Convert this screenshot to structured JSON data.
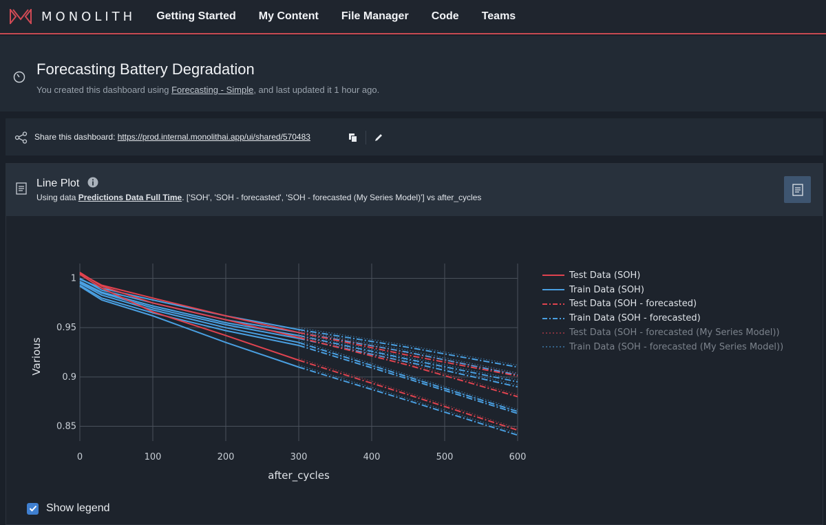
{
  "app": {
    "logo_text": "MONOLITH"
  },
  "nav": {
    "items": [
      "Getting Started",
      "My Content",
      "File Manager",
      "Code",
      "Teams"
    ]
  },
  "header": {
    "title": "Forecasting Battery Degradation",
    "subtitle_pre": "You created this dashboard using ",
    "subtitle_link": "Forecasting - Simple",
    "subtitle_post": ", and last updated it 1 hour ago."
  },
  "share": {
    "label": "Share this dashboard: ",
    "url": "https://prod.internal.monolithai.app/ui/shared/570483"
  },
  "panel": {
    "title": "Line Plot",
    "sub_pre": "Using data ",
    "dataset": "Predictions Data Full Time",
    "sub_post": ". ['SOH', 'SOH - forecasted', 'SOH - forecasted (My Series Model)'] vs after_cycles"
  },
  "show_legend": {
    "label": "Show legend",
    "checked": true
  },
  "colors": {
    "red": "#e0434f",
    "blue": "#4aa0e2",
    "accent": "#c94a52"
  },
  "chart_data": {
    "type": "line",
    "xlabel": "after_cycles",
    "ylabel": "Various",
    "xlim": [
      0,
      600
    ],
    "ylim": [
      0.835,
      1.015
    ],
    "xticks": [
      0,
      100,
      200,
      300,
      400,
      500,
      600
    ],
    "yticks": [
      0.85,
      0.9,
      0.95,
      1
    ],
    "ytick_labels": [
      "0.85",
      "0.9",
      "0.95",
      "1"
    ],
    "grid": true,
    "legend_position": "right",
    "legend": [
      {
        "label": "Test Data (SOH)",
        "color": "#e0434f",
        "dash": "solid",
        "faded": false
      },
      {
        "label": "Train Data (SOH)",
        "color": "#4aa0e2",
        "dash": "solid",
        "faded": false
      },
      {
        "label": "Test Data (SOH - forecasted)",
        "color": "#e0434f",
        "dash": "dashdot",
        "faded": false
      },
      {
        "label": "Train Data (SOH - forecasted)",
        "color": "#4aa0e2",
        "dash": "dashdot",
        "faded": false
      },
      {
        "label": "Test Data (SOH - forecasted (My Series Model))",
        "color": "#e0434f",
        "dash": "dot",
        "faded": true
      },
      {
        "label": "Train Data (SOH - forecasted (My Series Model))",
        "color": "#4aa0e2",
        "dash": "dot",
        "faded": true
      }
    ],
    "series": [
      {
        "kind": "Test",
        "hist_x": [
          0,
          30,
          100,
          200,
          300
        ],
        "hist_y": [
          1.005,
          0.993,
          0.98,
          0.962,
          0.945
        ],
        "fc_x": [
          300,
          450,
          600
        ],
        "fc_y": [
          0.945,
          0.922,
          0.901
        ]
      },
      {
        "kind": "Test",
        "hist_x": [
          0,
          30,
          100,
          200,
          300
        ],
        "hist_y": [
          1.006,
          0.992,
          0.975,
          0.958,
          0.94
        ],
        "fc_x": [
          300,
          450,
          600
        ],
        "fc_y": [
          0.94,
          0.912,
          0.88
        ]
      },
      {
        "kind": "Test",
        "hist_x": [
          0,
          30,
          100,
          200,
          300
        ],
        "hist_y": [
          1.004,
          0.99,
          0.966,
          0.942,
          0.917
        ],
        "fc_x": [
          300,
          450,
          600
        ],
        "fc_y": [
          0.917,
          0.882,
          0.846
        ]
      },
      {
        "kind": "Train",
        "hist_x": [
          0,
          30,
          100,
          200,
          300
        ],
        "hist_y": [
          0.999,
          0.99,
          0.978,
          0.962,
          0.948
        ],
        "fc_x": [
          300,
          450,
          600
        ],
        "fc_y": [
          0.948,
          0.93,
          0.91
        ]
      },
      {
        "kind": "Train",
        "hist_x": [
          0,
          30,
          100,
          200,
          300
        ],
        "hist_y": [
          1.0,
          0.988,
          0.975,
          0.958,
          0.945
        ],
        "fc_x": [
          300,
          450,
          600
        ],
        "fc_y": [
          0.945,
          0.925,
          0.902
        ]
      },
      {
        "kind": "Train",
        "hist_x": [
          0,
          30,
          100,
          200,
          300
        ],
        "hist_y": [
          0.997,
          0.986,
          0.972,
          0.955,
          0.942
        ],
        "fc_x": [
          300,
          450,
          600
        ],
        "fc_y": [
          0.942,
          0.918,
          0.895
        ]
      },
      {
        "kind": "Train",
        "hist_x": [
          0,
          30,
          100,
          200,
          300
        ],
        "hist_y": [
          0.996,
          0.985,
          0.97,
          0.953,
          0.939
        ],
        "fc_x": [
          300,
          450,
          600
        ],
        "fc_y": [
          0.939,
          0.915,
          0.89
        ]
      },
      {
        "kind": "Train",
        "hist_x": [
          0,
          30,
          100,
          200,
          300
        ],
        "hist_y": [
          0.995,
          0.983,
          0.968,
          0.95,
          0.935
        ],
        "fc_x": [
          300,
          450,
          600
        ],
        "fc_y": [
          0.935,
          0.9,
          0.865
        ]
      },
      {
        "kind": "Train",
        "hist_x": [
          0,
          30,
          100,
          200,
          300
        ],
        "hist_y": [
          0.993,
          0.98,
          0.965,
          0.947,
          0.932
        ],
        "fc_x": [
          300,
          450,
          600
        ],
        "fc_y": [
          0.932,
          0.898,
          0.863
        ]
      },
      {
        "kind": "Train",
        "hist_x": [
          0,
          30,
          100,
          200,
          300
        ],
        "hist_y": [
          0.992,
          0.978,
          0.962,
          0.935,
          0.91
        ],
        "fc_x": [
          300,
          450,
          600
        ],
        "fc_y": [
          0.91,
          0.876,
          0.841
        ]
      }
    ]
  }
}
